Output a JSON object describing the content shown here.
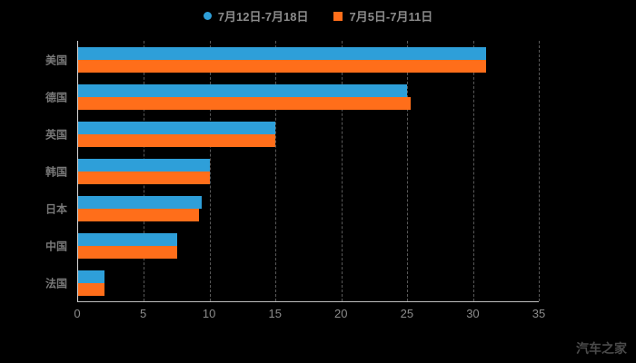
{
  "watermark": "汽车之家",
  "legend": {
    "items": [
      {
        "label": "7月12日-7月18日",
        "marker": "circle",
        "color": "#2e9fd9"
      },
      {
        "label": "7月5日-7月11日",
        "marker": "square",
        "color": "#ff6e1a"
      }
    ]
  },
  "chart_data": {
    "type": "bar",
    "orientation": "horizontal",
    "title": "",
    "xlabel": "",
    "ylabel": "",
    "categories": [
      "美国",
      "德国",
      "英国",
      "韩国",
      "日本",
      "中国",
      "法国"
    ],
    "series": [
      {
        "name": "7月12日-7月18日",
        "color": "#2e9fd9",
        "values": [
          31,
          25,
          15,
          10,
          9.4,
          7.5,
          2
        ]
      },
      {
        "name": "7月5日-7月11日",
        "color": "#ff6e1a",
        "values": [
          31,
          25.3,
          15,
          10,
          9.2,
          7.5,
          2
        ]
      }
    ],
    "xlim": [
      0,
      35
    ],
    "xticks": [
      0,
      5,
      10,
      15,
      20,
      25,
      30,
      35
    ],
    "grid": true,
    "grid_style": "dashed",
    "legend_position": "top",
    "background": "#000000"
  }
}
